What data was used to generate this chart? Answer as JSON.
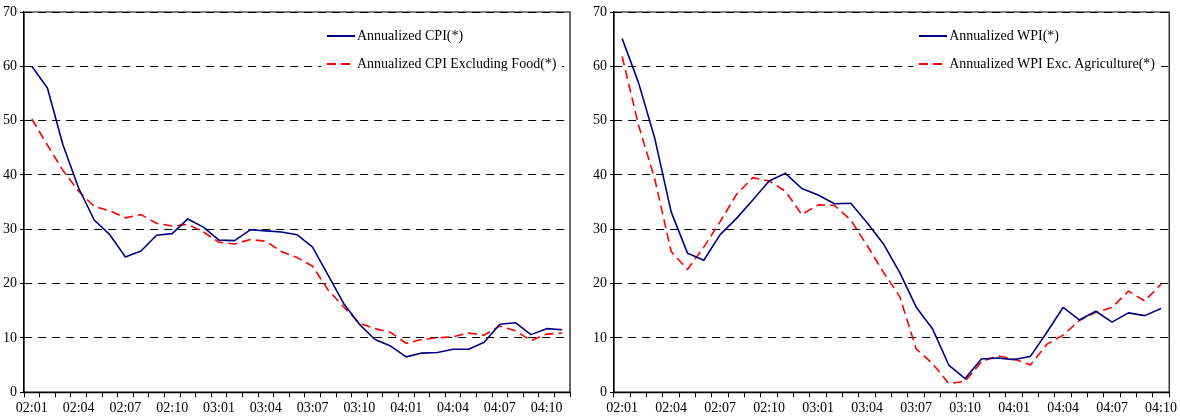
{
  "chart_data": [
    {
      "type": "line",
      "categories": [
        "02:01",
        null,
        null,
        "02:04",
        null,
        null,
        "02:07",
        null,
        null,
        "02:10",
        null,
        null,
        "03:01",
        null,
        null,
        "03:04",
        null,
        null,
        "03:07",
        null,
        null,
        "03:10",
        null,
        null,
        "04:01",
        null,
        null,
        "04:04",
        null,
        null,
        "04:07",
        null,
        null,
        "04:10",
        null
      ],
      "series": [
        {
          "name": "Annualized CPI(*)",
          "color": "#000080",
          "line_style": "solid",
          "values": [
            60.0,
            56.0,
            45.5,
            37.6,
            31.7,
            29.0,
            24.9,
            26.0,
            28.9,
            29.2,
            31.9,
            30.4,
            28.0,
            27.9,
            29.9,
            29.7,
            29.5,
            29.0,
            26.7,
            21.5,
            16.3,
            12.5,
            9.7,
            8.5,
            6.5,
            7.2,
            7.3,
            7.9,
            7.9,
            9.2,
            12.5,
            12.8,
            10.6,
            11.7,
            11.5
          ]
        },
        {
          "name": "Annualized CPI Excluding Food(*)",
          "color": "#ff0000",
          "line_style": "dashed",
          "values": [
            50.3,
            45.5,
            40.8,
            37.0,
            34.2,
            33.4,
            32.1,
            32.7,
            31.1,
            30.6,
            30.9,
            29.5,
            27.6,
            27.3,
            28.1,
            27.8,
            25.9,
            24.8,
            23.2,
            18.8,
            15.7,
            12.7,
            11.7,
            11.0,
            9.0,
            9.7,
            10.0,
            10.2,
            10.9,
            10.5,
            12.2,
            11.3,
            9.5,
            10.7,
            10.9
          ]
        }
      ],
      "ylim": [
        0,
        70
      ],
      "yticks": [
        0,
        10,
        20,
        30,
        40,
        50,
        60,
        70
      ],
      "grid": "y",
      "legend": "top right",
      "marker": "none"
    },
    {
      "type": "line",
      "categories": [
        "02:01",
        null,
        null,
        "02:04",
        null,
        null,
        "02:07",
        null,
        null,
        "02:10",
        null,
        null,
        "03:01",
        null,
        null,
        "03:04",
        null,
        null,
        "03:07",
        null,
        null,
        "03:10",
        null,
        null,
        "04:01",
        null,
        null,
        "04:04",
        null,
        null,
        "04:07",
        null,
        null,
        "04:10"
      ],
      "series": [
        {
          "name": "Annualized WPI(*)",
          "color": "#000080",
          "line_style": "solid",
          "values": [
            65.1,
            57.0,
            46.7,
            33.2,
            25.6,
            24.3,
            29.0,
            32.0,
            35.4,
            38.9,
            40.3,
            37.5,
            36.3,
            34.7,
            34.8,
            31.2,
            27.3,
            22.0,
            15.7,
            11.7,
            5.0,
            2.5,
            6.1,
            6.3,
            6.0,
            6.6,
            11.0,
            15.6,
            13.3,
            14.9,
            12.9,
            14.6,
            14.1,
            15.4
          ]
        },
        {
          "name": "Annualized WPI Exc. Agriculture(*)",
          "color": "#ff0000",
          "line_style": "dashed",
          "values": [
            61.8,
            49.2,
            39.2,
            25.9,
            22.6,
            26.7,
            31.4,
            36.4,
            39.5,
            38.9,
            37.0,
            32.7,
            34.5,
            34.4,
            31.7,
            27.0,
            22.1,
            17.6,
            8.0,
            5.3,
            1.6,
            2.0,
            5.6,
            6.7,
            6.1,
            5.0,
            8.8,
            10.5,
            13.2,
            14.7,
            15.6,
            18.6,
            16.8,
            19.9
          ]
        }
      ],
      "ylim": [
        0,
        70
      ],
      "yticks": [
        0,
        10,
        20,
        30,
        40,
        50,
        60,
        70
      ],
      "grid": "y",
      "legend": "top right",
      "marker": "none"
    }
  ]
}
